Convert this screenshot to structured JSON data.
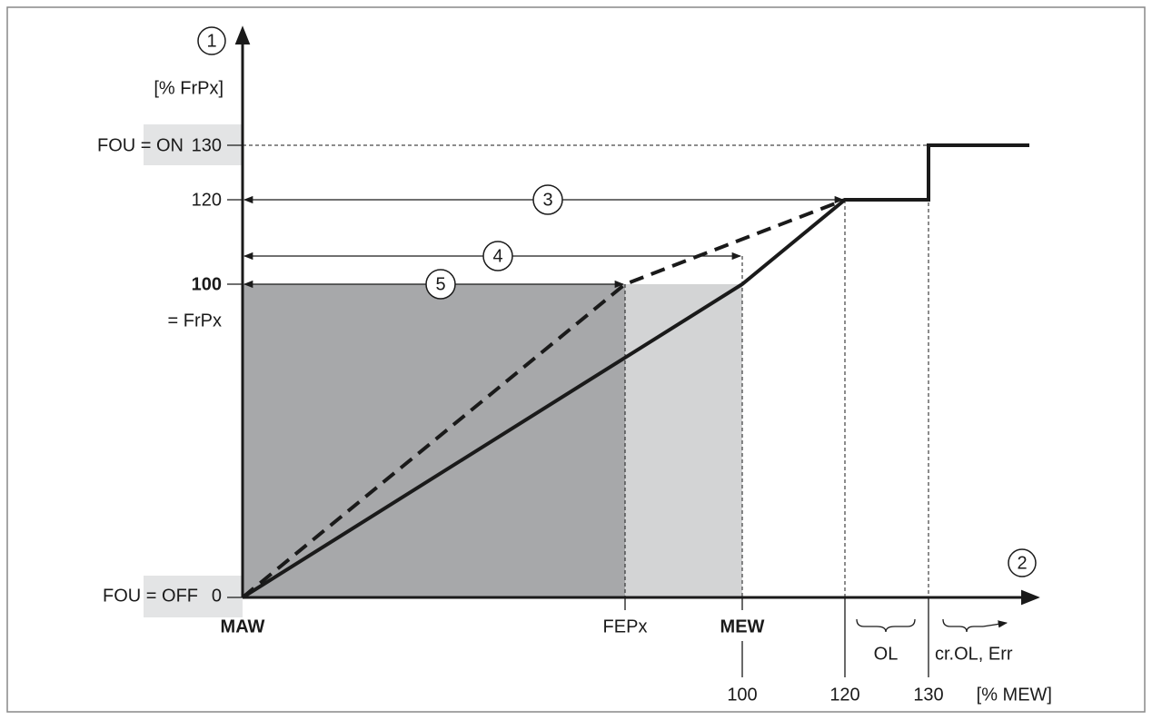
{
  "axes": {
    "y": {
      "marker": "1",
      "unit": "[% FrPx]"
    },
    "x": {
      "marker": "2",
      "unit": "[% MEW]"
    }
  },
  "y_labels": {
    "fou_on": "FOU = ON",
    "on_value": "130",
    "mid_value": "120",
    "frpx_value": "100",
    "frpx": "= FrPx",
    "fou_off": "FOU = OFF",
    "off_value": "0"
  },
  "x_labels": {
    "maw": "MAW",
    "fepx": "FEPx",
    "mew": "MEW",
    "mew_value": "100",
    "value_120": "120",
    "value_130": "130",
    "ol": "OL",
    "error": "cr.OL, Err"
  },
  "ranges": {
    "range_3": "3",
    "range_4": "4",
    "range_5": "5"
  }
}
